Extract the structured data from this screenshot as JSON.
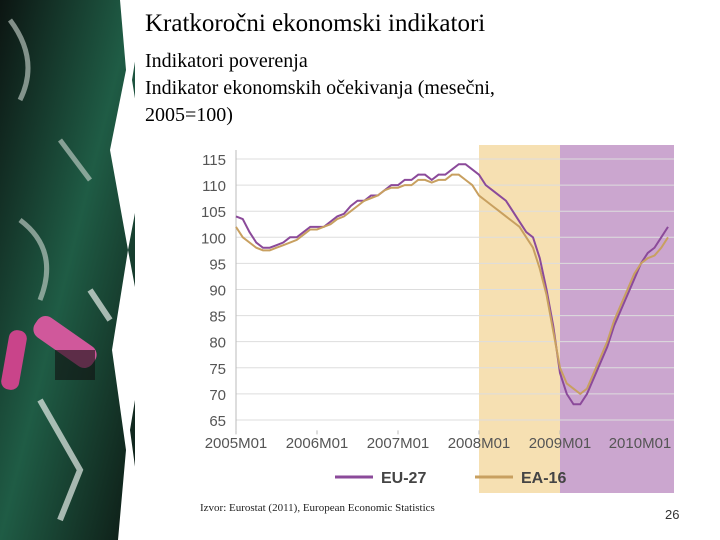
{
  "header": {
    "title": "Kratkoročni ekonomski indikatori",
    "subtitle_lines": [
      "Indikatori poverenja",
      "Indikator ekonomskih očekivanja (mesečni,",
      "2005=100)"
    ]
  },
  "chart_data": {
    "type": "line",
    "x": [
      0,
      1,
      2,
      3,
      4,
      5,
      6,
      7,
      8,
      9,
      10,
      11,
      12,
      13,
      14,
      15,
      16,
      17,
      18,
      19,
      20,
      21,
      22,
      23,
      24,
      25,
      26,
      27,
      28,
      29,
      30,
      31,
      32,
      33,
      34,
      35,
      36,
      37,
      38,
      39,
      40,
      41,
      42,
      43,
      44,
      45,
      46,
      47,
      48,
      49,
      50,
      51,
      52,
      53,
      54,
      55,
      56,
      57,
      58,
      59,
      60,
      61,
      62,
      63,
      64
    ],
    "series": [
      {
        "name": "EU-27",
        "color": "#8b4a9a",
        "values": [
          104,
          103.5,
          101,
          99,
          98,
          98,
          98.5,
          99,
          100,
          100,
          101,
          102,
          102,
          102,
          103,
          104,
          104.5,
          106,
          107,
          107,
          108,
          108,
          109,
          110,
          110,
          111,
          111,
          112,
          112,
          111,
          112,
          112,
          113,
          114,
          114,
          113,
          112,
          110,
          109,
          108,
          107,
          105,
          103,
          101,
          100,
          96,
          90,
          83,
          74,
          70,
          68,
          68,
          70,
          73,
          76,
          79,
          83,
          86,
          89,
          92,
          95,
          97,
          98,
          100,
          102
        ]
      },
      {
        "name": "EA-16",
        "color": "#c8a060",
        "values": [
          102,
          100,
          99,
          98,
          97.5,
          97.5,
          98,
          98.5,
          99,
          99.5,
          100.5,
          101.5,
          101.5,
          102,
          102.5,
          103.5,
          104,
          105,
          106,
          107,
          107.5,
          108,
          109,
          109.5,
          109.5,
          110,
          110,
          111,
          111,
          110.5,
          111,
          111,
          112,
          112,
          111,
          110,
          108,
          107,
          106,
          105,
          104,
          103,
          102,
          100,
          98,
          94,
          89,
          82,
          75,
          72,
          71,
          70,
          71,
          74,
          77,
          80,
          84,
          87,
          90,
          93,
          95,
          96,
          96.5,
          98,
          100
        ]
      }
    ],
    "xlim": [
      0,
      64
    ],
    "xticks": [
      {
        "value": 0,
        "label": "2005M01"
      },
      {
        "value": 12,
        "label": "2006M01"
      },
      {
        "value": 24,
        "label": "2007M01"
      },
      {
        "value": 36,
        "label": "2008M01"
      },
      {
        "value": 48,
        "label": "2009M01"
      },
      {
        "value": 60,
        "label": "2010M01"
      }
    ],
    "ylim": [
      63,
      116
    ],
    "yticks": [
      65,
      70,
      75,
      80,
      85,
      90,
      95,
      100,
      105,
      110,
      115
    ],
    "grid": true,
    "shaded_ranges": [
      {
        "start": 36,
        "end": 48,
        "color": "#f6e0b2"
      },
      {
        "start": 48,
        "end": 64,
        "color": "#cba6cf"
      }
    ],
    "legend": "bottom"
  },
  "footer": {
    "source": "Izvor: Eurostat (2011), European Economic Statistics",
    "page_number": "26"
  }
}
